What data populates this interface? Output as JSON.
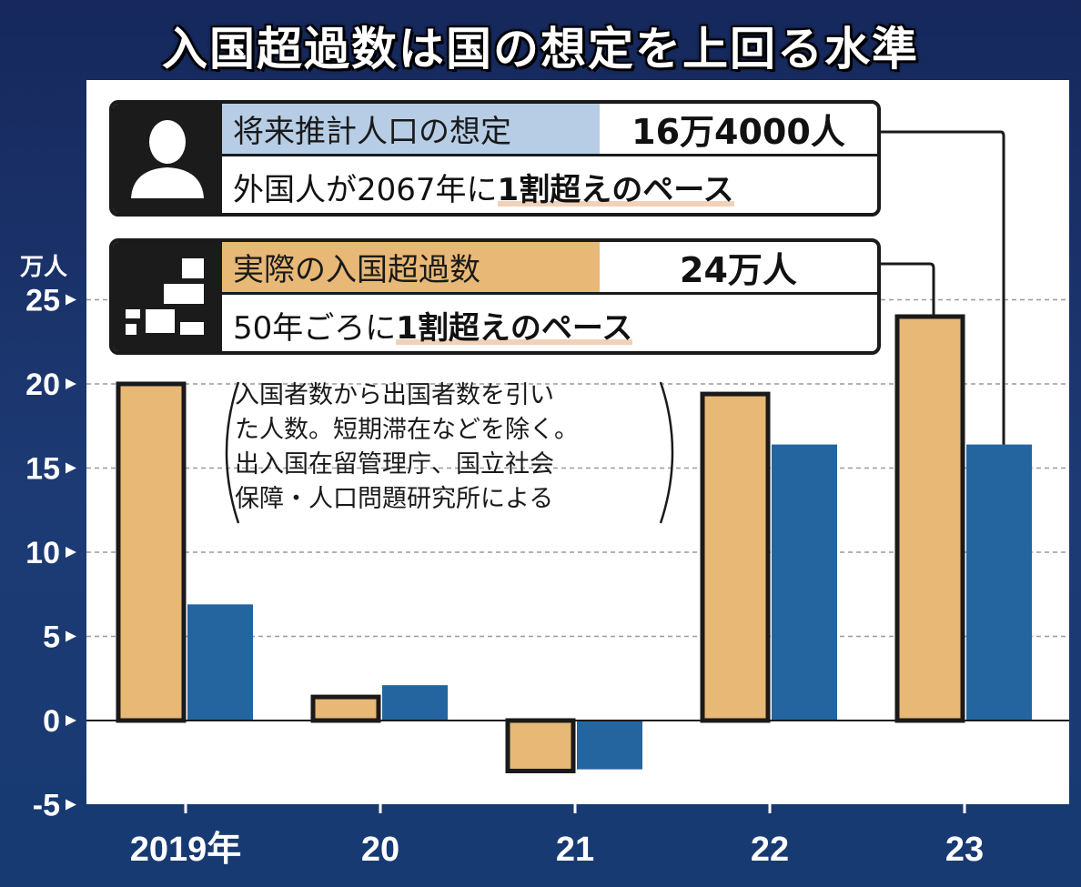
{
  "title": "入国超過数は国の想定を上回る水準",
  "box1": {
    "label": "将来推計人口の想定",
    "value": "16万4000人",
    "text_prefix": "外国人が2067年に",
    "text_highlight": "1割超えのペース",
    "label_bg": "#b7cde6",
    "icon": "person-icon"
  },
  "box2": {
    "label": "実際の入国超過数",
    "value": "24万人",
    "text_prefix": "50年ごろに",
    "text_highlight": "1割超えのペース",
    "label_bg": "#e8b876",
    "icon": "stairs-icon"
  },
  "note": {
    "lines": [
      "入国者数から出国者数を引い",
      "た人数。短期滞在などを除く。",
      "出入国在留管理庁、国立社会",
      "保障・人口問題研究所による"
    ]
  },
  "chart_data": {
    "type": "bar",
    "categories": [
      "2019年",
      "20",
      "21",
      "22",
      "23"
    ],
    "series": [
      {
        "name": "実際の入国超過数",
        "color": "#e8b876",
        "values": [
          20.0,
          1.4,
          -3.0,
          19.4,
          24.0
        ]
      },
      {
        "name": "将来推計人口の想定",
        "color": "#2465a0",
        "values": [
          6.9,
          2.1,
          -2.9,
          16.4,
          16.4
        ]
      }
    ],
    "ylabel": "万人",
    "yticks": [
      -5,
      0,
      5,
      10,
      15,
      20,
      25
    ],
    "ylim": [
      -5,
      27
    ],
    "grid": true,
    "colors": {
      "background": "#1b3068",
      "plot_area": "#ffffff",
      "frame": "#1a1a1a"
    }
  }
}
